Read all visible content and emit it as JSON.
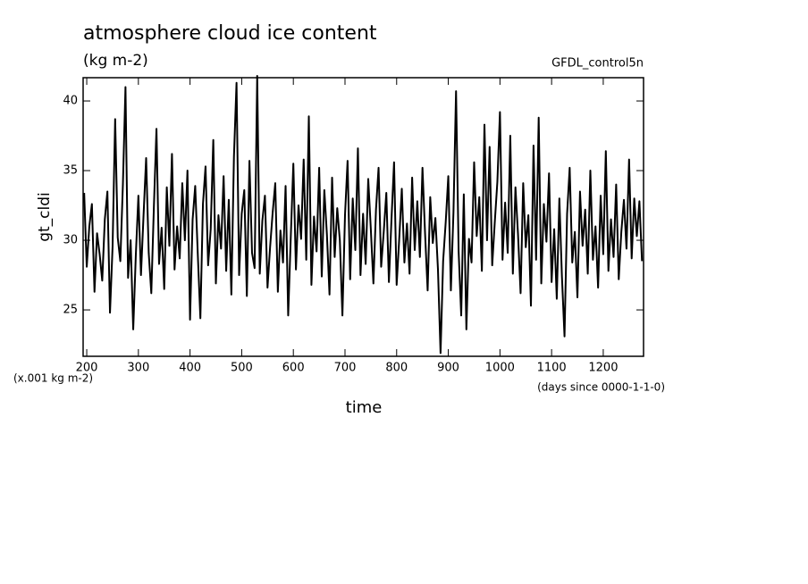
{
  "chart_data": {
    "type": "line",
    "title": "atmosphere cloud ice content",
    "subtitle": "(kg m-2)",
    "source": "GFDL_control5n",
    "ylabel": "gt_cldi",
    "y_unit": "(x.001 kg m-2)",
    "x_unit": "(days since 0000-1-1-0)",
    "xlabel": "time",
    "color": "#000000",
    "xlim": [
      193,
      1278
    ],
    "ylim": [
      21.67,
      41.67
    ],
    "xticks": [
      200,
      300,
      400,
      500,
      600,
      700,
      800,
      900,
      1000,
      1100,
      1200
    ],
    "yticks": [
      25,
      30,
      35,
      40
    ],
    "x": [
      195,
      200,
      205,
      210,
      215,
      220,
      225,
      230,
      235,
      240,
      245,
      250,
      255,
      260,
      265,
      270,
      275,
      280,
      285,
      290,
      295,
      300,
      305,
      310,
      315,
      320,
      325,
      330,
      335,
      340,
      345,
      350,
      355,
      360,
      365,
      370,
      375,
      380,
      385,
      390,
      395,
      400,
      405,
      410,
      415,
      420,
      425,
      430,
      435,
      440,
      445,
      450,
      455,
      460,
      465,
      470,
      475,
      480,
      485,
      490,
      495,
      500,
      505,
      510,
      515,
      520,
      525,
      530,
      535,
      540,
      545,
      550,
      555,
      560,
      565,
      570,
      575,
      580,
      585,
      590,
      595,
      600,
      605,
      610,
      615,
      620,
      625,
      630,
      635,
      640,
      645,
      650,
      655,
      660,
      665,
      670,
      675,
      680,
      685,
      690,
      695,
      700,
      705,
      710,
      715,
      720,
      725,
      730,
      735,
      740,
      745,
      750,
      755,
      760,
      765,
      770,
      775,
      780,
      785,
      790,
      795,
      800,
      805,
      810,
      815,
      820,
      825,
      830,
      835,
      840,
      845,
      850,
      855,
      860,
      865,
      870,
      875,
      880,
      885,
      890,
      895,
      900,
      905,
      910,
      915,
      920,
      925,
      930,
      935,
      940,
      945,
      950,
      955,
      960,
      965,
      970,
      975,
      980,
      985,
      990,
      995,
      1000,
      1005,
      1010,
      1015,
      1020,
      1025,
      1030,
      1035,
      1040,
      1045,
      1050,
      1055,
      1060,
      1065,
      1070,
      1075,
      1080,
      1085,
      1090,
      1095,
      1100,
      1105,
      1110,
      1115,
      1120,
      1125,
      1130,
      1135,
      1140,
      1145,
      1150,
      1155,
      1160,
      1165,
      1170,
      1175,
      1180,
      1185,
      1190,
      1195,
      1200,
      1205,
      1210,
      1215,
      1220,
      1225,
      1230,
      1235,
      1240,
      1245,
      1250,
      1255,
      1260,
      1265,
      1270,
      1275
    ],
    "values": [
      33.4,
      28.1,
      31.0,
      32.6,
      26.3,
      30.5,
      29.0,
      27.1,
      31.5,
      33.5,
      24.8,
      29.5,
      38.7,
      30.2,
      28.5,
      34.0,
      41.0,
      27.3,
      30.0,
      23.6,
      28.9,
      33.2,
      27.5,
      31.8,
      35.9,
      29.1,
      26.2,
      32.4,
      38.0,
      28.3,
      30.9,
      26.5,
      33.8,
      29.6,
      36.2,
      27.9,
      31.0,
      28.7,
      34.1,
      30.0,
      35.0,
      24.3,
      31.5,
      33.9,
      29.0,
      24.4,
      32.6,
      35.3,
      28.2,
      30.8,
      37.2,
      26.9,
      31.8,
      29.4,
      34.6,
      27.8,
      32.9,
      26.1,
      36.0,
      41.3,
      27.5,
      31.9,
      33.6,
      26.0,
      35.7,
      29.1,
      28.0,
      41.8,
      27.6,
      31.4,
      33.2,
      26.6,
      29.5,
      32.0,
      34.1,
      26.3,
      30.7,
      28.4,
      33.9,
      24.6,
      30.2,
      35.5,
      27.9,
      32.5,
      30.1,
      35.8,
      28.6,
      38.9,
      26.8,
      31.7,
      29.2,
      35.2,
      27.4,
      33.6,
      30.4,
      26.1,
      34.5,
      28.8,
      32.3,
      30.0,
      24.6,
      31.8,
      35.7,
      27.2,
      33.0,
      29.3,
      36.6,
      27.5,
      31.9,
      28.3,
      34.4,
      30.8,
      26.9,
      32.2,
      35.2,
      28.1,
      30.6,
      33.4,
      27.0,
      31.5,
      35.6,
      26.8,
      30.1,
      33.7,
      28.4,
      31.2,
      27.6,
      34.5,
      29.3,
      32.8,
      28.8,
      35.2,
      30.5,
      26.4,
      33.1,
      29.8,
      31.6,
      27.9,
      21.9,
      28.5,
      31.3,
      34.6,
      26.4,
      32.0,
      40.7,
      29.2,
      24.6,
      33.3,
      23.6,
      30.1,
      28.4,
      35.6,
      30.3,
      33.1,
      27.8,
      38.3,
      30.0,
      36.7,
      28.2,
      31.3,
      34.2,
      39.2,
      28.6,
      32.7,
      29.1,
      37.5,
      27.6,
      33.8,
      30.4,
      26.2,
      34.1,
      29.5,
      31.8,
      25.3,
      36.8,
      28.6,
      38.8,
      26.9,
      32.6,
      29.9,
      34.8,
      27.0,
      30.8,
      25.8,
      33.0,
      27.4,
      23.1,
      31.9,
      35.2,
      28.4,
      30.6,
      25.9,
      33.5,
      29.6,
      32.2,
      27.6,
      35.0,
      28.6,
      31.0,
      26.6,
      33.2,
      29.0,
      36.4,
      27.8,
      31.5,
      28.8,
      34.0,
      27.2,
      30.6,
      32.9,
      29.4,
      35.8,
      28.7,
      33.0,
      30.3,
      32.8,
      28.5
    ]
  }
}
